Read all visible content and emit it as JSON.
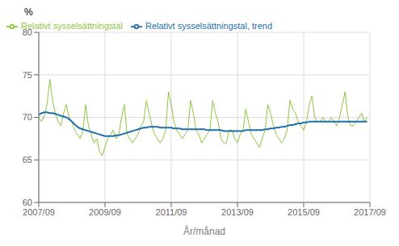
{
  "chart_data": {
    "type": "line",
    "xlabel": "År/månad",
    "ylabel": "%",
    "grid": true,
    "legend": "upper left",
    "x": [
      0,
      1,
      2,
      3,
      4,
      5,
      6,
      7,
      8,
      9,
      10,
      11,
      12,
      13,
      14,
      15,
      16,
      17,
      18,
      19,
      20,
      21,
      22,
      23,
      24,
      25,
      26,
      27,
      28,
      29,
      30,
      31,
      32,
      33,
      34,
      35,
      36,
      37,
      38,
      39,
      40,
      41,
      42,
      43,
      44,
      45,
      46,
      47,
      48,
      49,
      50,
      51,
      52,
      53,
      54,
      55,
      56,
      57,
      58,
      59,
      60,
      61,
      62,
      63,
      64,
      65,
      66,
      67,
      68,
      69,
      70,
      71,
      72,
      73,
      74,
      75,
      76,
      77,
      78,
      79,
      80,
      81,
      82,
      83,
      84,
      85,
      86,
      87,
      88,
      89,
      90,
      91,
      92,
      93,
      94,
      95,
      96,
      97,
      98,
      99,
      100,
      101,
      102,
      103,
      104,
      105,
      106,
      107,
      108,
      109,
      110,
      111,
      112,
      113,
      114,
      115,
      116,
      117,
      118,
      119
    ],
    "xlim": [
      0,
      120
    ],
    "xticks": [
      {
        "value": 0,
        "label": "2007/09"
      },
      {
        "value": 24,
        "label": "2009/09"
      },
      {
        "value": 48,
        "label": "2011/09"
      },
      {
        "value": 72,
        "label": "2013/09"
      },
      {
        "value": 96,
        "label": "2015/09"
      },
      {
        "value": 120,
        "label": "2017/09"
      }
    ],
    "ylim": [
      60,
      80
    ],
    "yticks": [
      60,
      65,
      70,
      75,
      80
    ],
    "series": [
      {
        "name": "Relativt sysselsättningstal",
        "color": "#8dc63f",
        "values": [
          70.0,
          69.5,
          70.2,
          71.5,
          74.5,
          72.0,
          70.5,
          69.5,
          69.0,
          70.5,
          71.5,
          70.0,
          69.5,
          68.5,
          68.0,
          67.5,
          68.5,
          71.5,
          69.0,
          68.0,
          67.0,
          67.5,
          66.0,
          65.5,
          66.5,
          67.5,
          68.0,
          68.5,
          67.5,
          68.0,
          70.0,
          71.5,
          68.0,
          67.5,
          67.0,
          67.5,
          68.0,
          69.0,
          69.5,
          72.0,
          70.5,
          69.0,
          68.0,
          67.5,
          67.0,
          67.5,
          68.5,
          73.0,
          71.5,
          69.5,
          68.5,
          68.0,
          67.5,
          68.0,
          68.5,
          72.0,
          70.5,
          68.5,
          68.0,
          67.0,
          67.5,
          68.0,
          68.5,
          72.0,
          70.5,
          69.5,
          67.5,
          67.0,
          67.0,
          68.5,
          68.5,
          67.5,
          67.0,
          68.0,
          68.5,
          71.0,
          69.5,
          68.0,
          67.5,
          67.0,
          66.5,
          67.5,
          68.5,
          71.5,
          70.5,
          69.0,
          68.0,
          67.5,
          67.0,
          67.5,
          68.5,
          72.0,
          71.0,
          70.5,
          69.5,
          69.0,
          68.5,
          69.5,
          71.5,
          72.5,
          70.0,
          69.5,
          69.5,
          70.0,
          69.5,
          69.5,
          70.0,
          69.5,
          69.0,
          70.0,
          71.5,
          73.0,
          70.0,
          69.0,
          69.0,
          69.5,
          70.0,
          70.5,
          69.5,
          70.0
        ]
      },
      {
        "name": "Relativt sysselsättningstal, trend",
        "color": "#1f6fad",
        "values": [
          70.3,
          70.5,
          70.6,
          70.6,
          70.5,
          70.5,
          70.4,
          70.3,
          70.2,
          70.1,
          70.0,
          69.8,
          69.5,
          69.2,
          68.9,
          68.7,
          68.6,
          68.5,
          68.4,
          68.3,
          68.2,
          68.1,
          68.0,
          67.9,
          67.8,
          67.8,
          67.8,
          67.8,
          67.9,
          67.9,
          68.0,
          68.1,
          68.2,
          68.3,
          68.4,
          68.5,
          68.6,
          68.7,
          68.8,
          68.8,
          68.9,
          68.9,
          68.9,
          68.9,
          68.8,
          68.8,
          68.8,
          68.8,
          68.8,
          68.7,
          68.7,
          68.7,
          68.6,
          68.6,
          68.6,
          68.6,
          68.6,
          68.6,
          68.6,
          68.6,
          68.6,
          68.5,
          68.5,
          68.5,
          68.5,
          68.5,
          68.5,
          68.4,
          68.4,
          68.4,
          68.4,
          68.4,
          68.4,
          68.4,
          68.4,
          68.5,
          68.5,
          68.5,
          68.5,
          68.5,
          68.5,
          68.5,
          68.6,
          68.6,
          68.7,
          68.7,
          68.8,
          68.8,
          68.9,
          68.9,
          69.0,
          69.1,
          69.1,
          69.2,
          69.3,
          69.3,
          69.4,
          69.4,
          69.5,
          69.5,
          69.5,
          69.5,
          69.5,
          69.5,
          69.5,
          69.5,
          69.5,
          69.5,
          69.5,
          69.5,
          69.5,
          69.5,
          69.5,
          69.5,
          69.5,
          69.5,
          69.5,
          69.5,
          69.5,
          69.5
        ]
      }
    ]
  }
}
